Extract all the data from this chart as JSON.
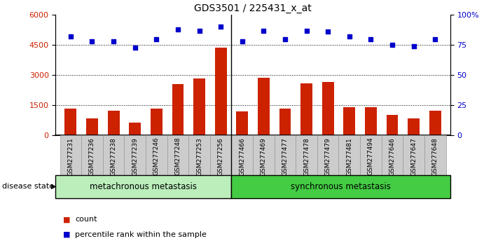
{
  "title": "GDS3501 / 225431_x_at",
  "categories": [
    "GSM277231",
    "GSM277236",
    "GSM277238",
    "GSM277239",
    "GSM277246",
    "GSM277248",
    "GSM277253",
    "GSM277256",
    "GSM277466",
    "GSM277469",
    "GSM277477",
    "GSM277478",
    "GSM277479",
    "GSM277481",
    "GSM277494",
    "GSM277646",
    "GSM277647",
    "GSM277648"
  ],
  "counts": [
    1310,
    820,
    1210,
    630,
    1310,
    2540,
    2820,
    4350,
    1200,
    2870,
    1310,
    2580,
    2650,
    1380,
    1380,
    1020,
    820,
    1220
  ],
  "percentiles": [
    82,
    78,
    78,
    73,
    80,
    88,
    87,
    90,
    78,
    87,
    80,
    87,
    86,
    82,
    80,
    75,
    74,
    80
  ],
  "group1_label": "metachronous metastasis",
  "group1_count": 8,
  "group2_label": "synchronous metastasis",
  "group2_count": 10,
  "bar_color": "#cc2200",
  "dot_color": "#0000cc",
  "ylim_left": [
    0,
    6000
  ],
  "yticks_left": [
    0,
    1500,
    3000,
    4500,
    6000
  ],
  "yticks_right": [
    0,
    25,
    50,
    75,
    100
  ],
  "legend_count_label": "count",
  "legend_pct_label": "percentile rank within the sample",
  "disease_state_label": "disease state",
  "group1_color": "#bbeebb",
  "group2_color": "#44cc44",
  "background_color": "#ffffff",
  "tick_bg_color": "#cccccc"
}
